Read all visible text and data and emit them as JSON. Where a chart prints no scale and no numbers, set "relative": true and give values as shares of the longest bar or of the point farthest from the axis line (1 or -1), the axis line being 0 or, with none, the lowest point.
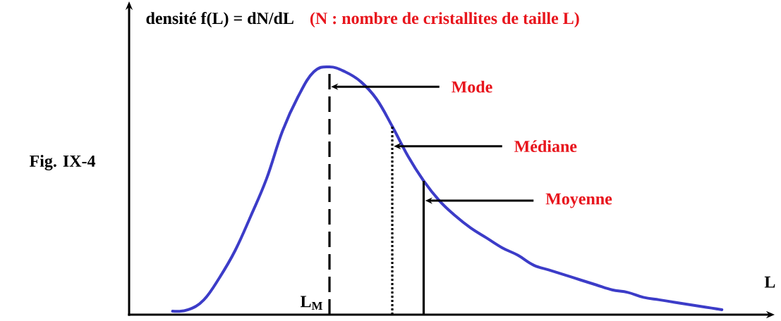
{
  "chart_data": {
    "type": "line",
    "relative": true,
    "ylabel": "densité f(L) = dN/dL",
    "subtitle": "(N : nombre de cristallites de taille L)",
    "xlabel": "L",
    "annotations": [
      "Fig. IX-4",
      "L$_{M}$",
      "Mode",
      "Médiane",
      "Moyenne"
    ],
    "categories": [
      null,
      null,
      null,
      null,
      null,
      null,
      null,
      null,
      null,
      null,
      null,
      null,
      null,
      null,
      null,
      null,
      null,
      null,
      null,
      null,
      null,
      null,
      null,
      null,
      null,
      null,
      null,
      null,
      null,
      null,
      null,
      null,
      null,
      null,
      null,
      null
    ],
    "series": [
      {
        "color": "#3c3cc8",
        "values": [
          0.014,
          0.02,
          0.06,
          0.15,
          0.26,
          0.4,
          0.55,
          0.74,
          0.88,
          0.98,
          1.0,
          0.98,
          0.94,
          0.87,
          0.76,
          0.64,
          0.54,
          0.46,
          0.4,
          0.35,
          0.31,
          0.27,
          0.24,
          0.2,
          0.18,
          0.16,
          0.14,
          0.12,
          0.1,
          0.09,
          0.07,
          0.06,
          0.05,
          0.04,
          0.03,
          0.02
        ]
      }
    ]
  }
}
